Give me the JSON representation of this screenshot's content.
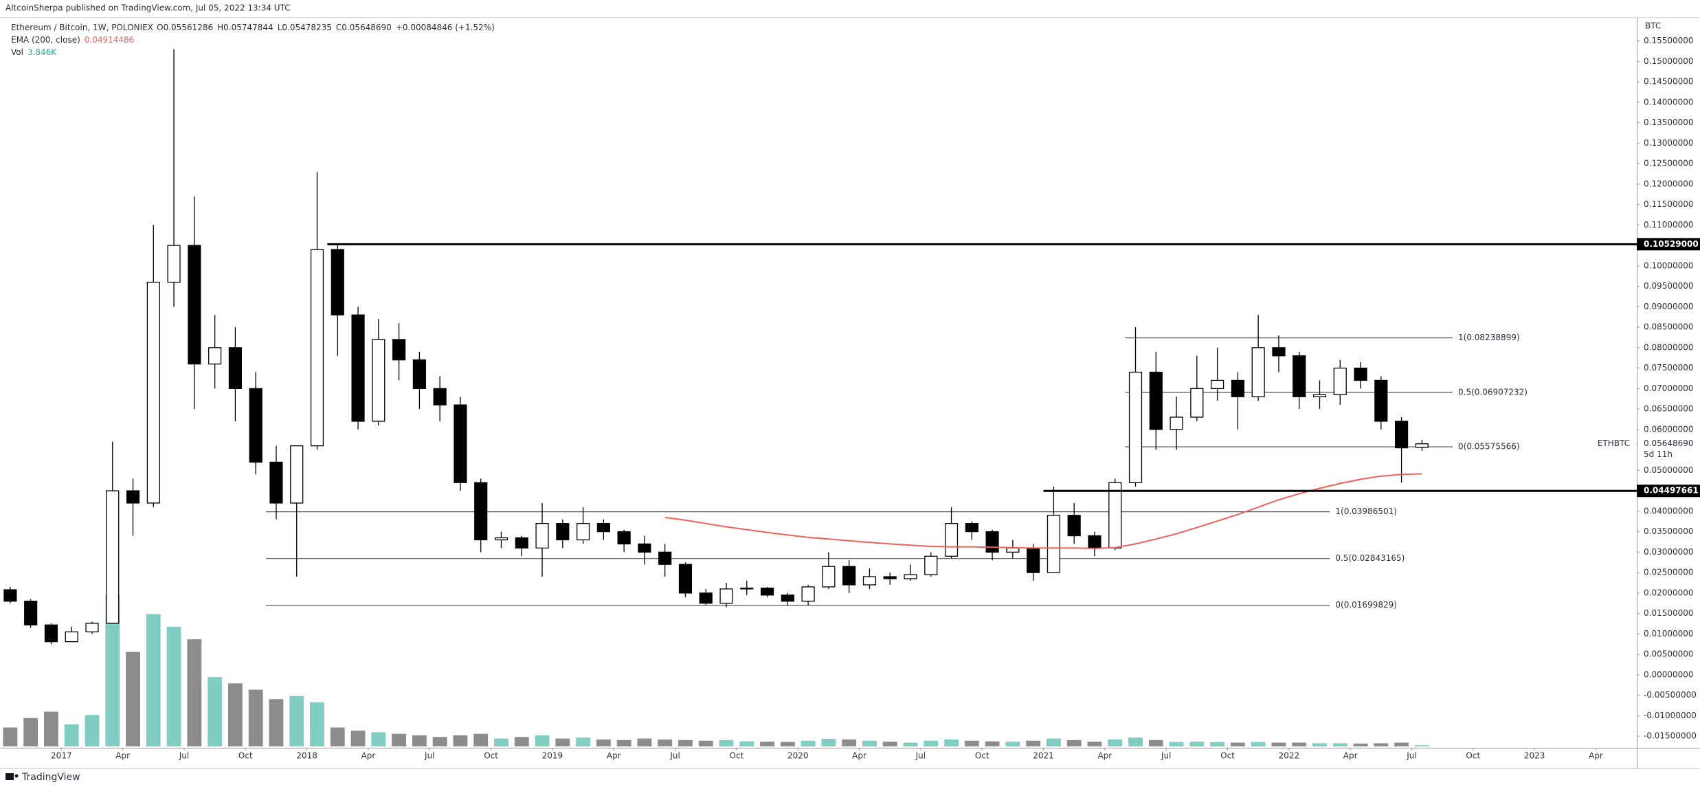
{
  "header": {
    "published": "AltcoinSherpa published on TradingView.com, Jul 05, 2022 13:34 UTC",
    "symbol": "Ethereum / Bitcoin, 1W, POLONIEX",
    "open": "O0.05561286",
    "high": "H0.05747844",
    "low": "L0.05478235",
    "close": "C0.05648690",
    "change": "+0.00084846 (+1.52%)",
    "ema_label": "EMA (200, close)",
    "ema_value": "0.04914486",
    "vol_label": "Vol",
    "vol_value": "3.846K"
  },
  "footer": {
    "brand": "TradingView"
  },
  "chart_data": {
    "type": "candlestick",
    "y_axis_label": "BTC",
    "up_color": "#ffffff",
    "down_color": "#000000",
    "volume_up_color": "#7fcdc3",
    "volume_down_color": "#8c8c8c",
    "xlim": [
      "2016-10",
      "2023-06"
    ],
    "ylim": [
      -0.0175,
      0.1603
    ],
    "xticks": [
      {
        "value": "2017-01",
        "label": "2017"
      },
      {
        "value": "2017-04",
        "label": "Apr"
      },
      {
        "value": "2017-07",
        "label": "Jul"
      },
      {
        "value": "2017-10",
        "label": "Oct"
      },
      {
        "value": "2018-01",
        "label": "2018"
      },
      {
        "value": "2018-04",
        "label": "Apr"
      },
      {
        "value": "2018-07",
        "label": "Jul"
      },
      {
        "value": "2018-10",
        "label": "Oct"
      },
      {
        "value": "2019-01",
        "label": "2019"
      },
      {
        "value": "2019-04",
        "label": "Apr"
      },
      {
        "value": "2019-07",
        "label": "Jul"
      },
      {
        "value": "2019-10",
        "label": "Oct"
      },
      {
        "value": "2020-01",
        "label": "2020"
      },
      {
        "value": "2020-04",
        "label": "Apr"
      },
      {
        "value": "2020-07",
        "label": "Jul"
      },
      {
        "value": "2020-10",
        "label": "Oct"
      },
      {
        "value": "2021-01",
        "label": "2021"
      },
      {
        "value": "2021-04",
        "label": "Apr"
      },
      {
        "value": "2021-07",
        "label": "Jul"
      },
      {
        "value": "2021-10",
        "label": "Oct"
      },
      {
        "value": "2022-01",
        "label": "2022"
      },
      {
        "value": "2022-04",
        "label": "Apr"
      },
      {
        "value": "2022-07",
        "label": "Jul"
      },
      {
        "value": "2022-10",
        "label": "Oct"
      },
      {
        "value": "2023-01",
        "label": "2023"
      },
      {
        "value": "2023-04",
        "label": "Apr"
      }
    ],
    "yticks": [
      {
        "value": -0.015,
        "label": "-0.01500000"
      },
      {
        "value": -0.01,
        "label": "-0.01000000"
      },
      {
        "value": -0.005,
        "label": "-0.00500000"
      },
      {
        "value": 0,
        "label": "0.00000000"
      },
      {
        "value": 0.005,
        "label": "0.00500000"
      },
      {
        "value": 0.01,
        "label": "0.01000000"
      },
      {
        "value": 0.015,
        "label": "0.01500000"
      },
      {
        "value": 0.02,
        "label": "0.02000000"
      },
      {
        "value": 0.025,
        "label": "0.02500000"
      },
      {
        "value": 0.03,
        "label": "0.03000000"
      },
      {
        "value": 0.035,
        "label": "0.03500000"
      },
      {
        "value": 0.04,
        "label": "0.04000000"
      },
      {
        "value": 0.045,
        "label": "0.04500000"
      },
      {
        "value": 0.05,
        "label": "0.05000000"
      },
      {
        "value": 0.055,
        "label": "0.05500000"
      },
      {
        "value": 0.06,
        "label": "0.06000000"
      },
      {
        "value": 0.065,
        "label": "0.06500000"
      },
      {
        "value": 0.07,
        "label": "0.07000000"
      },
      {
        "value": 0.075,
        "label": "0.07500000"
      },
      {
        "value": 0.08,
        "label": "0.08000000"
      },
      {
        "value": 0.085,
        "label": "0.08500000"
      },
      {
        "value": 0.09,
        "label": "0.09000000"
      },
      {
        "value": 0.095,
        "label": "0.09500000"
      },
      {
        "value": 0.1,
        "label": "0.10000000"
      },
      {
        "value": 0.105,
        "label": "0.10500000"
      },
      {
        "value": 0.11,
        "label": "0.11000000"
      },
      {
        "value": 0.115,
        "label": "0.11500000"
      },
      {
        "value": 0.12,
        "label": "0.12000000"
      },
      {
        "value": 0.125,
        "label": "0.12500000"
      },
      {
        "value": 0.13,
        "label": "0.13000000"
      },
      {
        "value": 0.135,
        "label": "0.13500000"
      },
      {
        "value": 0.14,
        "label": "0.14000000"
      },
      {
        "value": 0.145,
        "label": "0.14500000"
      },
      {
        "value": 0.15,
        "label": "0.15000000"
      },
      {
        "value": 0.155,
        "label": "0.15500000"
      }
    ],
    "candles": [
      {
        "x": "2016-10",
        "open": 0.0208,
        "high": 0.0215,
        "low": 0.0175,
        "close": 0.018,
        "volume": 60
      },
      {
        "x": "2016-11",
        "open": 0.018,
        "high": 0.0185,
        "low": 0.0115,
        "close": 0.0122,
        "volume": 90
      },
      {
        "x": "2016-12",
        "open": 0.0122,
        "high": 0.0126,
        "low": 0.0075,
        "close": 0.0081,
        "volume": 110
      },
      {
        "x": "2017-01",
        "open": 0.0081,
        "high": 0.0118,
        "low": 0.008,
        "close": 0.0105,
        "volume": 70
      },
      {
        "x": "2017-02",
        "open": 0.0105,
        "high": 0.013,
        "low": 0.01,
        "close": 0.0126,
        "volume": 100
      },
      {
        "x": "2017-03",
        "open": 0.0126,
        "high": 0.057,
        "low": 0.0125,
        "close": 0.045,
        "volume": 480
      },
      {
        "x": "2017-04",
        "open": 0.045,
        "high": 0.048,
        "low": 0.034,
        "close": 0.042,
        "volume": 300
      },
      {
        "x": "2017-05",
        "open": 0.042,
        "high": 0.11,
        "low": 0.041,
        "close": 0.096,
        "volume": 420
      },
      {
        "x": "2017-06",
        "open": 0.096,
        "high": 0.153,
        "low": 0.09,
        "close": 0.105,
        "volume": 380
      },
      {
        "x": "2017-07",
        "open": 0.105,
        "high": 0.117,
        "low": 0.065,
        "close": 0.076,
        "volume": 340
      },
      {
        "x": "2017-08",
        "open": 0.076,
        "high": 0.088,
        "low": 0.07,
        "close": 0.08,
        "volume": 220
      },
      {
        "x": "2017-09",
        "open": 0.08,
        "high": 0.085,
        "low": 0.062,
        "close": 0.07,
        "volume": 200
      },
      {
        "x": "2017-10",
        "open": 0.07,
        "high": 0.074,
        "low": 0.049,
        "close": 0.052,
        "volume": 180
      },
      {
        "x": "2017-11",
        "open": 0.052,
        "high": 0.056,
        "low": 0.038,
        "close": 0.042,
        "volume": 150
      },
      {
        "x": "2017-12",
        "open": 0.042,
        "high": 0.056,
        "low": 0.024,
        "close": 0.056,
        "volume": 160
      },
      {
        "x": "2018-01",
        "open": 0.056,
        "high": 0.123,
        "low": 0.055,
        "close": 0.104,
        "volume": 140
      },
      {
        "x": "2018-02",
        "open": 0.104,
        "high": 0.105,
        "low": 0.078,
        "close": 0.088,
        "volume": 60
      },
      {
        "x": "2018-03",
        "open": 0.088,
        "high": 0.09,
        "low": 0.06,
        "close": 0.062,
        "volume": 50
      },
      {
        "x": "2018-04",
        "open": 0.062,
        "high": 0.087,
        "low": 0.061,
        "close": 0.082,
        "volume": 45
      },
      {
        "x": "2018-05",
        "open": 0.082,
        "high": 0.086,
        "low": 0.072,
        "close": 0.077,
        "volume": 40
      },
      {
        "x": "2018-06",
        "open": 0.077,
        "high": 0.079,
        "low": 0.065,
        "close": 0.07,
        "volume": 35
      },
      {
        "x": "2018-07",
        "open": 0.07,
        "high": 0.073,
        "low": 0.062,
        "close": 0.066,
        "volume": 30
      },
      {
        "x": "2018-08",
        "open": 0.066,
        "high": 0.068,
        "low": 0.045,
        "close": 0.047,
        "volume": 35
      },
      {
        "x": "2018-09",
        "open": 0.047,
        "high": 0.048,
        "low": 0.03,
        "close": 0.033,
        "volume": 40
      },
      {
        "x": "2018-10",
        "open": 0.033,
        "high": 0.035,
        "low": 0.031,
        "close": 0.0335,
        "volume": 25
      },
      {
        "x": "2018-11",
        "open": 0.0335,
        "high": 0.034,
        "low": 0.029,
        "close": 0.031,
        "volume": 30
      },
      {
        "x": "2018-12",
        "open": 0.031,
        "high": 0.042,
        "low": 0.024,
        "close": 0.037,
        "volume": 35
      },
      {
        "x": "2019-01",
        "open": 0.037,
        "high": 0.038,
        "low": 0.031,
        "close": 0.033,
        "volume": 25
      },
      {
        "x": "2019-02",
        "open": 0.033,
        "high": 0.041,
        "low": 0.032,
        "close": 0.037,
        "volume": 28
      },
      {
        "x": "2019-03",
        "open": 0.037,
        "high": 0.038,
        "low": 0.033,
        "close": 0.035,
        "volume": 22
      },
      {
        "x": "2019-04",
        "open": 0.035,
        "high": 0.0355,
        "low": 0.03,
        "close": 0.032,
        "volume": 20
      },
      {
        "x": "2019-05",
        "open": 0.032,
        "high": 0.034,
        "low": 0.027,
        "close": 0.03,
        "volume": 25
      },
      {
        "x": "2019-06",
        "open": 0.03,
        "high": 0.032,
        "low": 0.024,
        "close": 0.027,
        "volume": 22
      },
      {
        "x": "2019-07",
        "open": 0.027,
        "high": 0.0275,
        "low": 0.019,
        "close": 0.02,
        "volume": 20
      },
      {
        "x": "2019-08",
        "open": 0.02,
        "high": 0.021,
        "low": 0.017,
        "close": 0.0175,
        "volume": 18
      },
      {
        "x": "2019-09",
        "open": 0.0175,
        "high": 0.0225,
        "low": 0.0165,
        "close": 0.021,
        "volume": 20
      },
      {
        "x": "2019-10",
        "open": 0.021,
        "high": 0.023,
        "low": 0.0195,
        "close": 0.0212,
        "volume": 16
      },
      {
        "x": "2019-11",
        "open": 0.0212,
        "high": 0.0215,
        "low": 0.019,
        "close": 0.0195,
        "volume": 15
      },
      {
        "x": "2019-12",
        "open": 0.0195,
        "high": 0.02,
        "low": 0.017,
        "close": 0.018,
        "volume": 14
      },
      {
        "x": "2020-01",
        "open": 0.018,
        "high": 0.022,
        "low": 0.017,
        "close": 0.0215,
        "volume": 18
      },
      {
        "x": "2020-02",
        "open": 0.0215,
        "high": 0.03,
        "low": 0.021,
        "close": 0.0265,
        "volume": 24
      },
      {
        "x": "2020-03",
        "open": 0.0265,
        "high": 0.028,
        "low": 0.02,
        "close": 0.022,
        "volume": 22
      },
      {
        "x": "2020-04",
        "open": 0.022,
        "high": 0.026,
        "low": 0.021,
        "close": 0.024,
        "volume": 18
      },
      {
        "x": "2020-05",
        "open": 0.024,
        "high": 0.025,
        "low": 0.022,
        "close": 0.0235,
        "volume": 15
      },
      {
        "x": "2020-06",
        "open": 0.0235,
        "high": 0.027,
        "low": 0.023,
        "close": 0.0245,
        "volume": 12
      },
      {
        "x": "2020-07",
        "open": 0.0245,
        "high": 0.03,
        "low": 0.024,
        "close": 0.029,
        "volume": 18
      },
      {
        "x": "2020-08",
        "open": 0.029,
        "high": 0.041,
        "low": 0.0285,
        "close": 0.037,
        "volume": 22
      },
      {
        "x": "2020-09",
        "open": 0.037,
        "high": 0.0375,
        "low": 0.033,
        "close": 0.035,
        "volume": 18
      },
      {
        "x": "2020-10",
        "open": 0.035,
        "high": 0.0355,
        "low": 0.028,
        "close": 0.03,
        "volume": 16
      },
      {
        "x": "2020-11",
        "open": 0.03,
        "high": 0.033,
        "low": 0.0285,
        "close": 0.031,
        "volume": 15
      },
      {
        "x": "2020-12",
        "open": 0.031,
        "high": 0.032,
        "low": 0.023,
        "close": 0.025,
        "volume": 18
      },
      {
        "x": "2021-01",
        "open": 0.025,
        "high": 0.046,
        "low": 0.025,
        "close": 0.039,
        "volume": 25
      },
      {
        "x": "2021-02",
        "open": 0.039,
        "high": 0.042,
        "low": 0.032,
        "close": 0.034,
        "volume": 20
      },
      {
        "x": "2021-03",
        "open": 0.034,
        "high": 0.035,
        "low": 0.029,
        "close": 0.031,
        "volume": 15
      },
      {
        "x": "2021-04",
        "open": 0.031,
        "high": 0.048,
        "low": 0.0305,
        "close": 0.047,
        "volume": 22
      },
      {
        "x": "2021-05",
        "open": 0.047,
        "high": 0.085,
        "low": 0.046,
        "close": 0.074,
        "volume": 28
      },
      {
        "x": "2021-06",
        "open": 0.074,
        "high": 0.079,
        "low": 0.055,
        "close": 0.06,
        "volume": 20
      },
      {
        "x": "2021-07",
        "open": 0.06,
        "high": 0.068,
        "low": 0.055,
        "close": 0.063,
        "volume": 14
      },
      {
        "x": "2021-08",
        "open": 0.063,
        "high": 0.078,
        "low": 0.062,
        "close": 0.07,
        "volume": 15
      },
      {
        "x": "2021-09",
        "open": 0.07,
        "high": 0.08,
        "low": 0.067,
        "close": 0.072,
        "volume": 14
      },
      {
        "x": "2021-10",
        "open": 0.072,
        "high": 0.074,
        "low": 0.06,
        "close": 0.068,
        "volume": 12
      },
      {
        "x": "2021-11",
        "open": 0.068,
        "high": 0.088,
        "low": 0.067,
        "close": 0.08,
        "volume": 14
      },
      {
        "x": "2021-12",
        "open": 0.08,
        "high": 0.083,
        "low": 0.074,
        "close": 0.078,
        "volume": 12
      },
      {
        "x": "2022-01",
        "open": 0.078,
        "high": 0.079,
        "low": 0.065,
        "close": 0.068,
        "volume": 12
      },
      {
        "x": "2022-02",
        "open": 0.068,
        "high": 0.072,
        "low": 0.065,
        "close": 0.0685,
        "volume": 10
      },
      {
        "x": "2022-03",
        "open": 0.0685,
        "high": 0.077,
        "low": 0.066,
        "close": 0.075,
        "volume": 10
      },
      {
        "x": "2022-04",
        "open": 0.075,
        "high": 0.0765,
        "low": 0.07,
        "close": 0.072,
        "volume": 9
      },
      {
        "x": "2022-05",
        "open": 0.072,
        "high": 0.073,
        "low": 0.06,
        "close": 0.062,
        "volume": 10
      },
      {
        "x": "2022-06",
        "open": 0.062,
        "high": 0.063,
        "low": 0.047,
        "close": 0.0555,
        "volume": 12
      },
      {
        "x": "2022-07",
        "open": 0.05561286,
        "high": 0.05747844,
        "low": 0.05478235,
        "close": 0.0564869,
        "volume": 3.846
      }
    ],
    "ema": {
      "color": "#f0605a",
      "values": [
        null,
        null,
        null,
        null,
        null,
        null,
        null,
        null,
        null,
        null,
        null,
        null,
        null,
        null,
        null,
        null,
        null,
        null,
        null,
        null,
        null,
        null,
        null,
        null,
        null,
        null,
        null,
        null,
        null,
        null,
        null,
        null,
        0.0385,
        0.0378,
        0.037,
        0.0362,
        0.0355,
        0.0348,
        0.0342,
        0.0336,
        0.0332,
        0.0328,
        0.0324,
        0.032,
        0.0317,
        0.0314,
        0.0313,
        0.0313,
        0.0312,
        0.0311,
        0.031,
        0.031,
        0.031,
        0.0309,
        0.0311,
        0.032,
        0.0332,
        0.0345,
        0.036,
        0.0376,
        0.0392,
        0.041,
        0.0428,
        0.0443,
        0.0456,
        0.0468,
        0.0478,
        0.0486,
        0.049,
        0.04914486
      ]
    },
    "levels": [
      {
        "value": 0.10529,
        "label": "0.10529000",
        "start": "2018-02"
      },
      {
        "value": 0.04497661,
        "label": "0.04497661",
        "start": "2021-01"
      }
    ],
    "fibs": [
      {
        "start": "2017-11",
        "end": "2022-03",
        "levels": [
          {
            "value": 0.03986501,
            "label": "1(0.03986501)"
          },
          {
            "value": 0.02843165,
            "label": "0.5(0.02843165)"
          },
          {
            "value": 0.01699829,
            "label": "0(0.01699829)"
          }
        ]
      },
      {
        "start": "2021-05",
        "end": "2022-09",
        "levels": [
          {
            "value": 0.08238899,
            "label": "1(0.08238899)"
          },
          {
            "value": 0.06907232,
            "label": "0.5(0.06907232)"
          },
          {
            "value": 0.05575566,
            "label": "0(0.05575566)"
          }
        ]
      }
    ],
    "price_marker": {
      "symbol": "ETHBTC",
      "value": 0.0564869,
      "label": "0.05648690",
      "countdown": "5d 11h"
    }
  }
}
